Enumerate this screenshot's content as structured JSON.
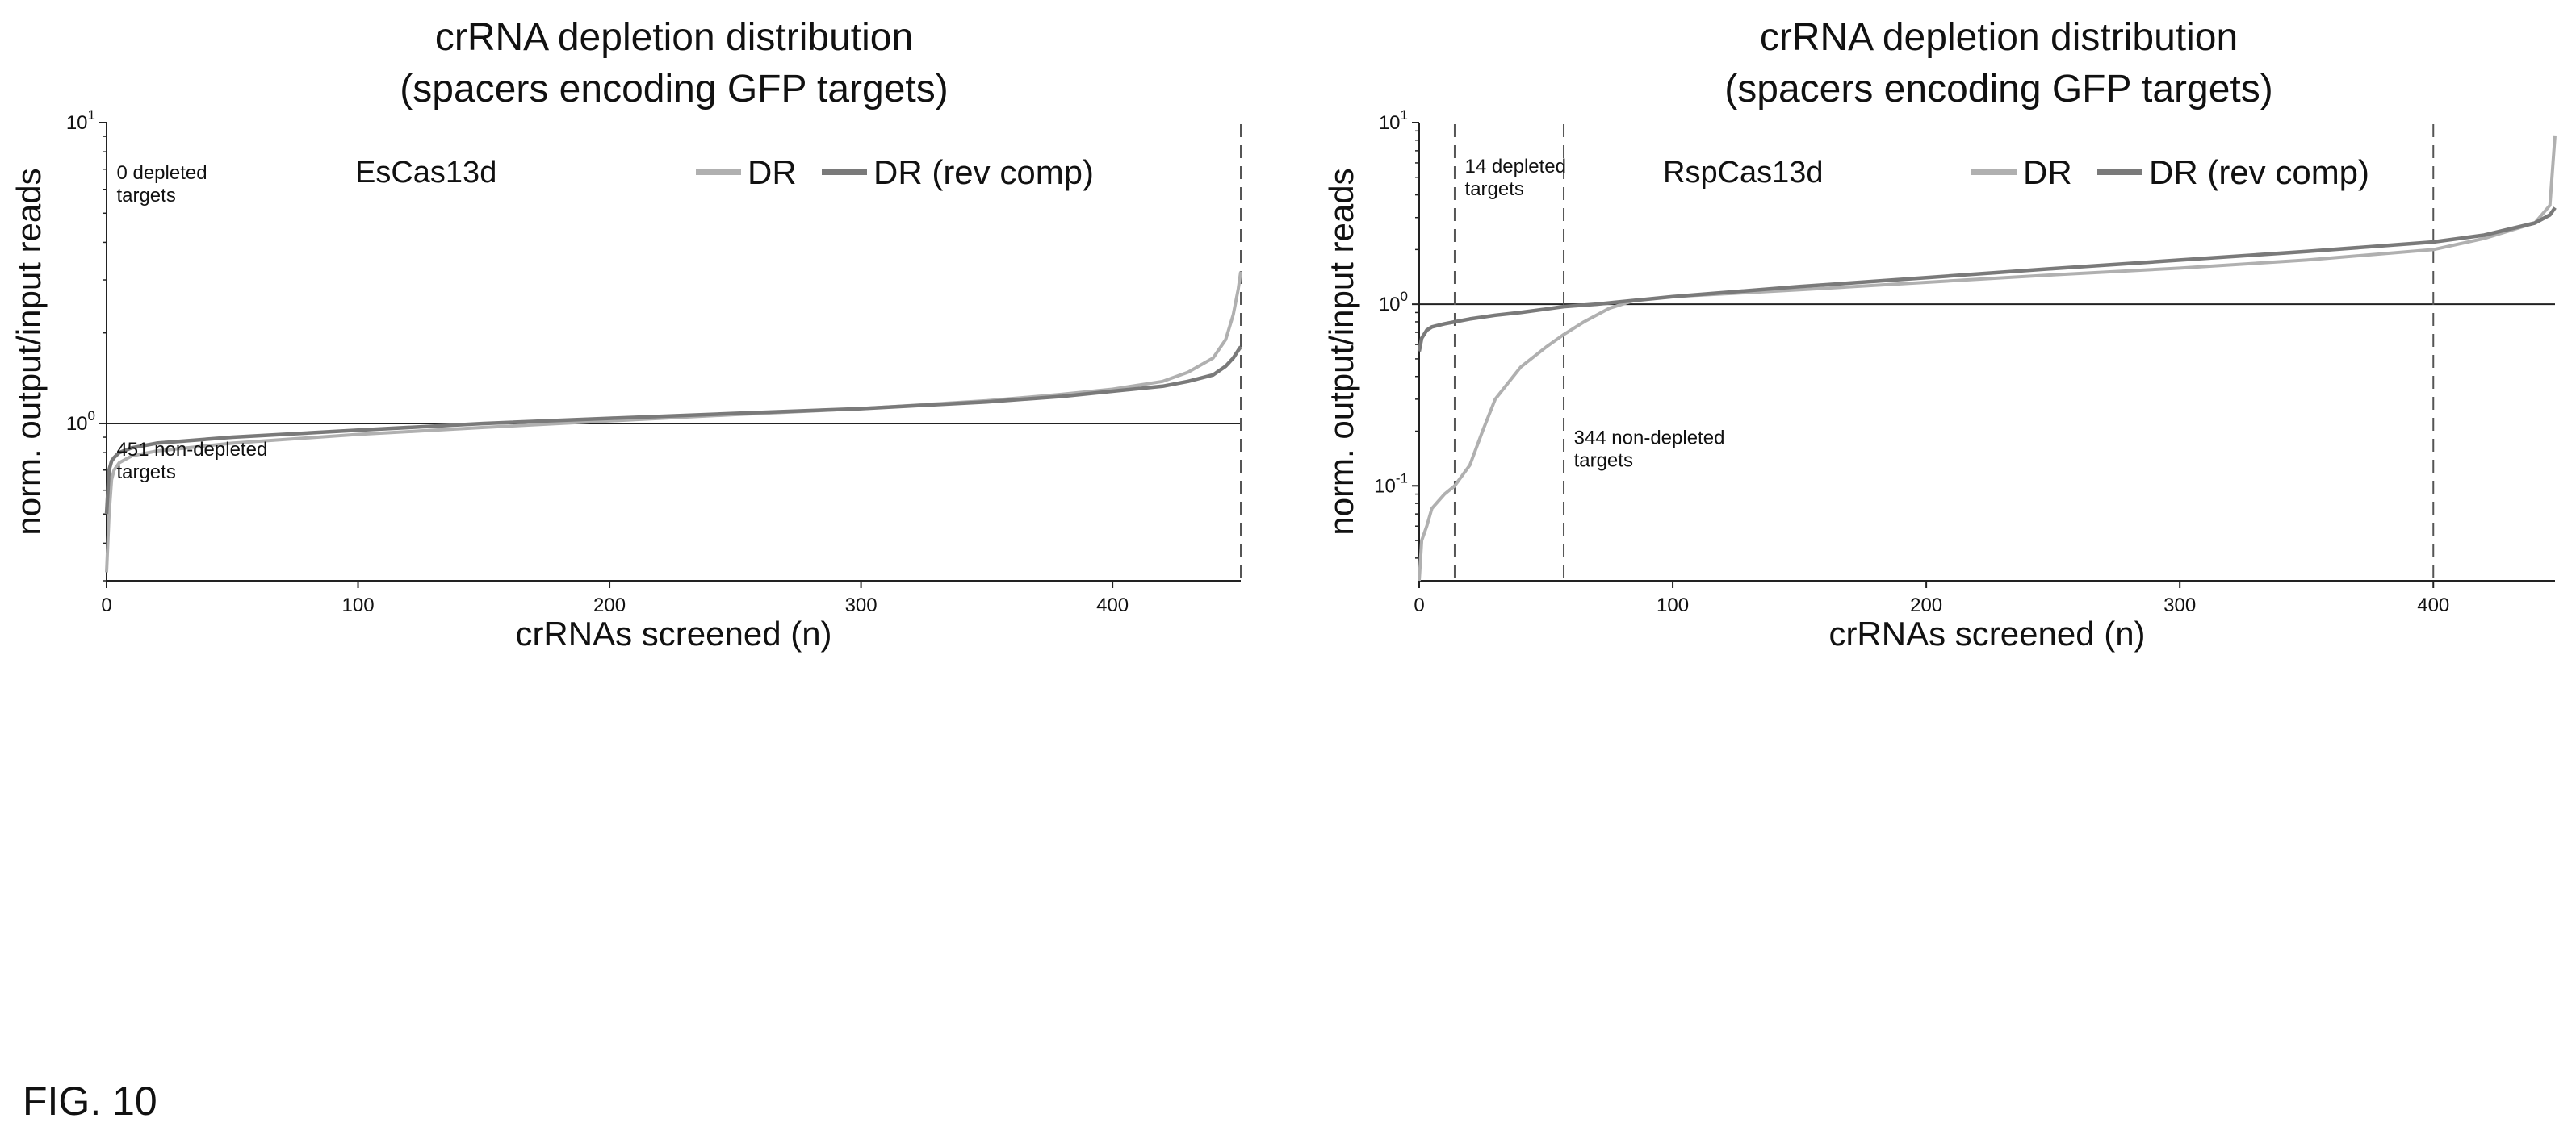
{
  "figure_label": "FIG. 10",
  "chart_data": [
    {
      "type": "line",
      "title": "crRNA depletion distribution",
      "subtitle": "(spacers encoding GFP targets)",
      "xlabel": "crRNAs screened (n)",
      "ylabel": "norm. output/input reads",
      "panel_label": "EsCas13d",
      "xlim": [
        0,
        451
      ],
      "ylim": [
        0.3,
        10
      ],
      "yscale": "log",
      "x_ticks": [
        0,
        100,
        200,
        300,
        400
      ],
      "y_ticks": [
        {
          "value": 10,
          "base": "10",
          "exp": "1"
        },
        {
          "value": 1,
          "base": "10",
          "exp": "0"
        }
      ],
      "grid": false,
      "legend_position": "top-center",
      "reference_line_y": 1,
      "vlines": [
        451
      ],
      "annotations": [
        {
          "text": [
            "0 depleted",
            "targets"
          ],
          "x": 4,
          "y": 6.5
        },
        {
          "text": [
            "451 non-depleted",
            "targets"
          ],
          "x": 4,
          "y": 0.78
        }
      ],
      "series": [
        {
          "name": "DR",
          "color": "#b0b0b0",
          "x": [
            0,
            1,
            2,
            3,
            5,
            10,
            20,
            50,
            100,
            150,
            200,
            250,
            300,
            350,
            380,
            400,
            420,
            430,
            440,
            445,
            448,
            450,
            451
          ],
          "y": [
            0.32,
            0.5,
            0.65,
            0.7,
            0.74,
            0.78,
            0.81,
            0.86,
            0.92,
            0.97,
            1.02,
            1.07,
            1.12,
            1.19,
            1.25,
            1.3,
            1.38,
            1.48,
            1.65,
            1.9,
            2.3,
            2.8,
            3.2
          ]
        },
        {
          "name": "DR (rev comp)",
          "color": "#7a7a7a",
          "x": [
            0,
            1,
            2,
            3,
            5,
            10,
            20,
            50,
            100,
            150,
            200,
            250,
            300,
            350,
            380,
            400,
            420,
            430,
            440,
            445,
            448,
            450,
            451
          ],
          "y": [
            0.5,
            0.7,
            0.75,
            0.77,
            0.8,
            0.83,
            0.86,
            0.9,
            0.95,
            1.0,
            1.04,
            1.08,
            1.12,
            1.18,
            1.23,
            1.28,
            1.33,
            1.38,
            1.45,
            1.55,
            1.65,
            1.75,
            1.8
          ]
        }
      ]
    },
    {
      "type": "line",
      "title": "crRNA depletion distribution",
      "subtitle": "(spacers encoding GFP targets)",
      "xlabel": "crRNAs screened (n)",
      "ylabel": "norm. output/input reads",
      "panel_label": "RspCas13d",
      "xlim": [
        0,
        448
      ],
      "ylim": [
        0.03,
        10
      ],
      "yscale": "log",
      "x_ticks": [
        0,
        100,
        200,
        300,
        400
      ],
      "y_ticks": [
        {
          "value": 10,
          "base": "10",
          "exp": "1"
        },
        {
          "value": 1,
          "base": "10",
          "exp": "0"
        },
        {
          "value": 0.1,
          "base": "10",
          "exp": "-1"
        }
      ],
      "grid": false,
      "legend_position": "top-center",
      "reference_line_y": 1,
      "vlines": [
        14,
        57,
        400
      ],
      "annotations": [
        {
          "text": [
            "14 depleted",
            "targets"
          ],
          "x": 18,
          "y": 5.3
        },
        {
          "text": [
            "344 non-depleted",
            "targets"
          ],
          "x": 61,
          "y": 0.17
        }
      ],
      "series": [
        {
          "name": "DR",
          "color": "#b0b0b0",
          "x": [
            0,
            1,
            3,
            5,
            10,
            14,
            20,
            25,
            30,
            40,
            50,
            57,
            65,
            75,
            85,
            100,
            150,
            200,
            250,
            300,
            350,
            400,
            420,
            440,
            446,
            448
          ],
          "y": [
            0.03,
            0.05,
            0.06,
            0.075,
            0.09,
            0.1,
            0.13,
            0.2,
            0.3,
            0.45,
            0.58,
            0.68,
            0.8,
            0.95,
            1.05,
            1.1,
            1.2,
            1.32,
            1.45,
            1.58,
            1.75,
            2.0,
            2.3,
            2.8,
            3.5,
            8.5
          ]
        },
        {
          "name": "DR (rev comp)",
          "color": "#7a7a7a",
          "x": [
            0,
            1,
            3,
            5,
            10,
            14,
            20,
            30,
            40,
            50,
            57,
            70,
            85,
            100,
            150,
            200,
            250,
            300,
            350,
            400,
            420,
            440,
            446,
            448
          ],
          "y": [
            0.55,
            0.65,
            0.72,
            0.75,
            0.78,
            0.8,
            0.83,
            0.87,
            0.9,
            0.94,
            0.97,
            1.0,
            1.05,
            1.1,
            1.25,
            1.4,
            1.57,
            1.75,
            1.95,
            2.2,
            2.4,
            2.8,
            3.1,
            3.4
          ]
        }
      ]
    }
  ]
}
